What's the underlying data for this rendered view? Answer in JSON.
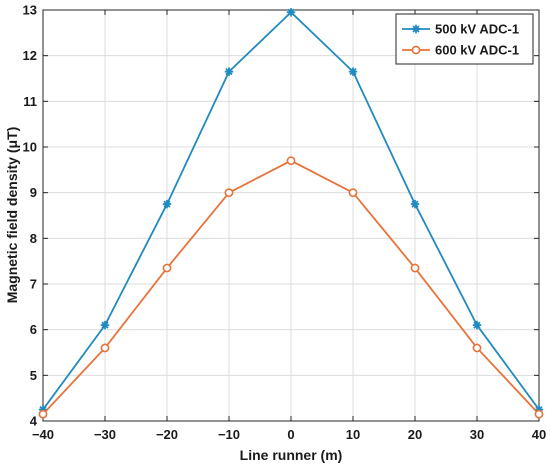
{
  "chart_data": {
    "type": "line",
    "title": "",
    "xlabel": "Line runner (m)",
    "ylabel": "Magnetic field density (μT)",
    "x": [
      -40,
      -30,
      -20,
      -10,
      0,
      10,
      20,
      30,
      40
    ],
    "xlim": [
      -40,
      40
    ],
    "ylim": [
      4,
      13
    ],
    "xticks": [
      -40,
      -30,
      -20,
      -10,
      0,
      10,
      20,
      30,
      40
    ],
    "xtick_labels": [
      "−40",
      "−30",
      "−20",
      "−10",
      "0",
      "10",
      "20",
      "30",
      "40"
    ],
    "yticks": [
      4,
      5,
      6,
      7,
      8,
      9,
      10,
      11,
      12,
      13
    ],
    "ytick_labels": [
      "4",
      "5",
      "6",
      "7",
      "8",
      "9",
      "10",
      "11",
      "12",
      "13"
    ],
    "grid": true,
    "legend_position": "top-right",
    "series": [
      {
        "name": "500 kV ADC-1",
        "color": "#1f8bbf",
        "marker": "asterisk",
        "values": [
          4.25,
          6.1,
          8.75,
          11.65,
          12.95,
          11.65,
          8.75,
          6.1,
          4.25
        ]
      },
      {
        "name": "600 kV ADC-1",
        "color": "#e8733a",
        "marker": "circle",
        "values": [
          4.15,
          5.6,
          7.35,
          9.0,
          9.7,
          9.0,
          7.35,
          5.6,
          4.15
        ]
      }
    ]
  }
}
